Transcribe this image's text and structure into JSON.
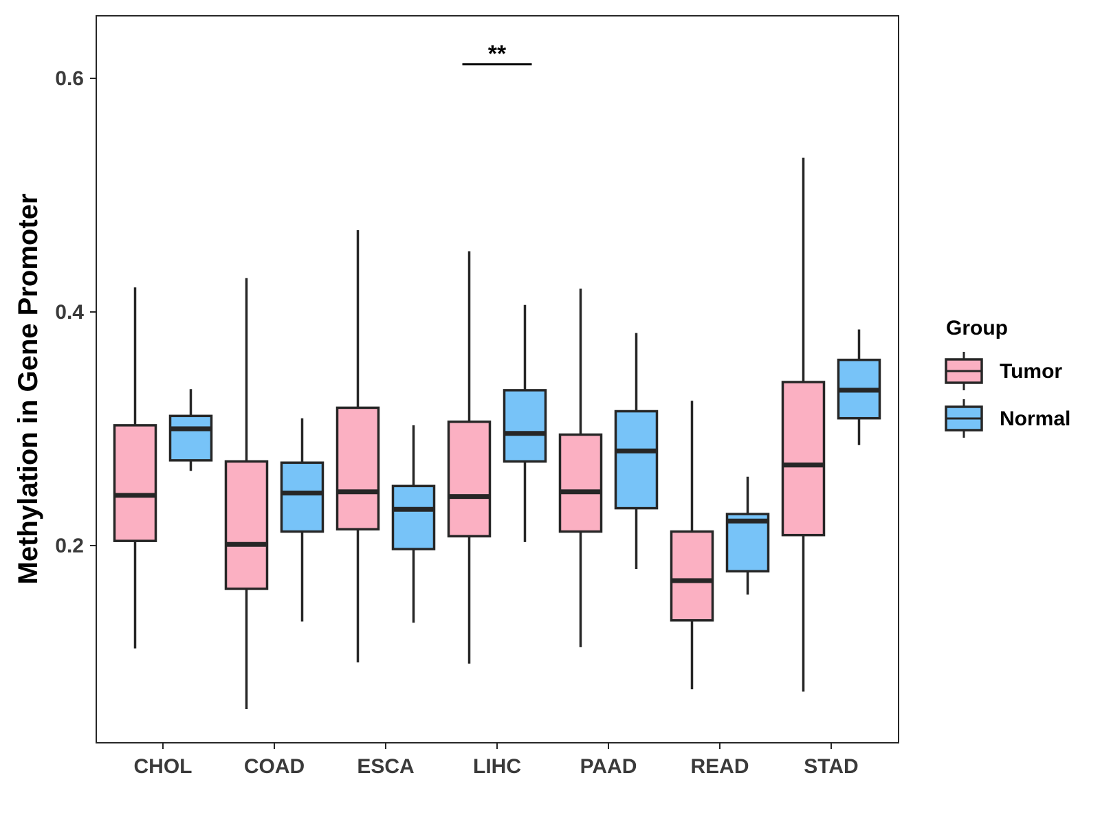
{
  "chart_data": {
    "type": "box",
    "title": "",
    "xlabel": "",
    "ylabel": "Methylation in Gene Promoter",
    "ylim": [
      0.04,
      0.66
    ],
    "yticks": [
      0.2,
      0.4,
      0.6
    ],
    "ytick_labels": [
      "0.2",
      "0.4",
      "0.6"
    ],
    "categories": [
      "CHOL",
      "COAD",
      "ESCA",
      "LIHC",
      "PAAD",
      "READ",
      "STAD"
    ],
    "legend": {
      "title": "Group",
      "position": "right",
      "entries": [
        "Tumor",
        "Normal"
      ]
    },
    "colors": {
      "Tumor": "#FBB0C2",
      "Normal": "#77C3F8",
      "outline": "#262626"
    },
    "series": [
      {
        "name": "Tumor",
        "boxes": [
          {
            "category": "CHOL",
            "min": 0.112,
            "q1": 0.204,
            "median": 0.243,
            "q3": 0.303,
            "max": 0.421
          },
          {
            "category": "COAD",
            "min": 0.06,
            "q1": 0.163,
            "median": 0.201,
            "q3": 0.272,
            "max": 0.429
          },
          {
            "category": "ESCA",
            "min": 0.1,
            "q1": 0.214,
            "median": 0.246,
            "q3": 0.318,
            "max": 0.47
          },
          {
            "category": "LIHC",
            "min": 0.099,
            "q1": 0.208,
            "median": 0.242,
            "q3": 0.306,
            "max": 0.452
          },
          {
            "category": "PAAD",
            "min": 0.113,
            "q1": 0.212,
            "median": 0.246,
            "q3": 0.295,
            "max": 0.42
          },
          {
            "category": "READ",
            "min": 0.077,
            "q1": 0.136,
            "median": 0.17,
            "q3": 0.212,
            "max": 0.324
          },
          {
            "category": "STAD",
            "min": 0.075,
            "q1": 0.209,
            "median": 0.269,
            "q3": 0.34,
            "max": 0.532
          }
        ]
      },
      {
        "name": "Normal",
        "boxes": [
          {
            "category": "CHOL",
            "min": 0.264,
            "q1": 0.273,
            "median": 0.3,
            "q3": 0.311,
            "max": 0.334
          },
          {
            "category": "COAD",
            "min": 0.135,
            "q1": 0.212,
            "median": 0.245,
            "q3": 0.271,
            "max": 0.309
          },
          {
            "category": "ESCA",
            "min": 0.134,
            "q1": 0.197,
            "median": 0.231,
            "q3": 0.251,
            "max": 0.303
          },
          {
            "category": "LIHC",
            "min": 0.203,
            "q1": 0.272,
            "median": 0.296,
            "q3": 0.333,
            "max": 0.406
          },
          {
            "category": "PAAD",
            "min": 0.18,
            "q1": 0.232,
            "median": 0.281,
            "q3": 0.315,
            "max": 0.382
          },
          {
            "category": "READ",
            "min": 0.158,
            "q1": 0.178,
            "median": 0.221,
            "q3": 0.227,
            "max": 0.259
          },
          {
            "category": "STAD",
            "min": 0.286,
            "q1": 0.309,
            "median": 0.333,
            "q3": 0.359,
            "max": 0.385
          }
        ]
      }
    ],
    "annotations": [
      {
        "text": "**",
        "category": "LIHC",
        "y": 0.612
      }
    ]
  }
}
